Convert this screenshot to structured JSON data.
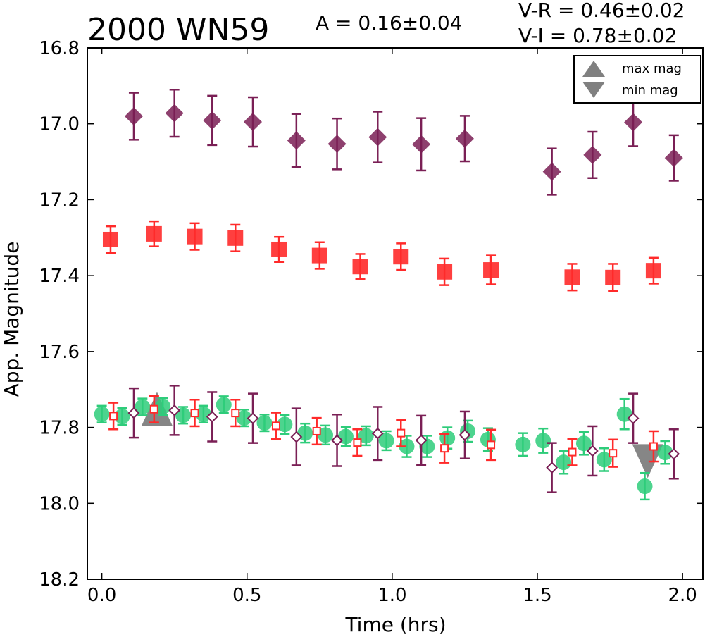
{
  "chart_data": {
    "type": "scatter",
    "title": "2000 WN59",
    "amplitude_text": "A  = 0.16±0.04",
    "color_indices": [
      "V-R = 0.46±0.02",
      "V-I  = 0.78±0.02"
    ],
    "xlabel": "Time (hrs)",
    "ylabel": "App. Magnitude",
    "xlim": [
      -0.05,
      2.07
    ],
    "ylim": [
      18.2,
      16.8
    ],
    "y_inverted": true,
    "x_ticks": [
      "0.0",
      "0.5",
      "1.0",
      "1.5",
      "2.0"
    ],
    "y_ticks": [
      "16.8",
      "17.0",
      "17.2",
      "17.4",
      "17.6",
      "17.8",
      "18.0",
      "18.2"
    ],
    "legend": {
      "position": "top-right",
      "entries": [
        {
          "label": "max mag",
          "marker": "triangle-up",
          "color": "#808080"
        },
        {
          "label": "min mag",
          "marker": "triangle-down",
          "color": "#808080"
        }
      ]
    },
    "series": [
      {
        "marker": "diamond",
        "color": "#7a1f55",
        "filled": true,
        "x": [
          0.11,
          0.25,
          0.38,
          0.52,
          0.67,
          0.81,
          0.95,
          1.1,
          1.25,
          1.55,
          1.69,
          1.83,
          1.97
        ],
        "y": [
          16.98,
          16.972,
          16.991,
          16.995,
          17.044,
          17.053,
          17.035,
          17.054,
          17.039,
          17.126,
          17.082,
          16.996,
          17.09
        ],
        "err": [
          0.062,
          0.062,
          0.065,
          0.065,
          0.07,
          0.067,
          0.067,
          0.069,
          0.06,
          0.061,
          0.061,
          0.063,
          0.06
        ]
      },
      {
        "marker": "square",
        "color": "#ff2a2a",
        "filled": true,
        "x": [
          0.03,
          0.18,
          0.32,
          0.46,
          0.61,
          0.75,
          0.89,
          1.03,
          1.18,
          1.34,
          1.62,
          1.76,
          1.9
        ],
        "y": [
          17.305,
          17.29,
          17.297,
          17.301,
          17.331,
          17.347,
          17.376,
          17.35,
          17.39,
          17.385,
          17.404,
          17.405,
          17.387
        ],
        "err": [
          0.035,
          0.033,
          0.035,
          0.035,
          0.033,
          0.035,
          0.033,
          0.035,
          0.035,
          0.038,
          0.035,
          0.036,
          0.034
        ]
      },
      {
        "marker": "circle",
        "color": "#2ecc7a",
        "filled": true,
        "x": [
          0.0,
          0.07,
          0.14,
          0.21,
          0.28,
          0.35,
          0.42,
          0.49,
          0.56,
          0.63,
          0.7,
          0.77,
          0.84,
          0.91,
          0.98,
          1.05,
          1.12,
          1.19,
          1.26,
          1.33,
          1.45,
          1.52,
          1.59,
          1.66,
          1.73,
          1.8,
          1.87,
          1.94
        ],
        "y": [
          17.765,
          17.771,
          17.746,
          17.745,
          17.768,
          17.765,
          17.74,
          17.775,
          17.788,
          17.792,
          17.815,
          17.82,
          17.824,
          17.822,
          17.835,
          17.85,
          17.85,
          17.828,
          17.81,
          17.832,
          17.845,
          17.835,
          17.892,
          17.842,
          17.885,
          17.765,
          17.955,
          17.866
        ],
        "err": [
          0.022,
          0.022,
          0.022,
          0.022,
          0.022,
          0.022,
          0.022,
          0.022,
          0.022,
          0.025,
          0.025,
          0.025,
          0.025,
          0.025,
          0.025,
          0.028,
          0.028,
          0.028,
          0.028,
          0.03,
          0.03,
          0.032,
          0.03,
          0.03,
          0.03,
          0.04,
          0.035,
          0.03
        ]
      },
      {
        "marker": "square",
        "color": "#ff2a2a",
        "filled": false,
        "x": [
          0.04,
          0.18,
          0.32,
          0.46,
          0.6,
          0.74,
          0.88,
          1.03,
          1.18,
          1.34,
          1.62,
          1.76,
          1.9
        ],
        "y": [
          17.77,
          17.752,
          17.762,
          17.762,
          17.796,
          17.81,
          17.84,
          17.815,
          17.855,
          17.846,
          17.865,
          17.868,
          17.85
        ],
        "err": [
          0.035,
          0.035,
          0.035,
          0.035,
          0.035,
          0.035,
          0.035,
          0.035,
          0.038,
          0.04,
          0.035,
          0.036,
          0.04
        ]
      },
      {
        "marker": "diamond",
        "color": "#7a1f55",
        "filled": false,
        "x": [
          0.11,
          0.25,
          0.38,
          0.52,
          0.67,
          0.81,
          0.95,
          1.1,
          1.25,
          1.55,
          1.69,
          1.83,
          1.97
        ],
        "y": [
          17.762,
          17.755,
          17.772,
          17.776,
          17.825,
          17.834,
          17.816,
          17.834,
          17.82,
          17.906,
          17.862,
          17.776,
          17.87
        ],
        "err": [
          0.065,
          0.065,
          0.065,
          0.065,
          0.075,
          0.068,
          0.07,
          0.065,
          0.062,
          0.065,
          0.065,
          0.065,
          0.065
        ]
      }
    ],
    "markers_extrema": [
      {
        "label": "max mag",
        "marker": "triangle-up",
        "color": "#808080",
        "x": 0.19,
        "y": 17.755
      },
      {
        "label": "min mag",
        "marker": "triangle-down",
        "color": "#808080",
        "x": 1.88,
        "y": 17.885
      }
    ]
  }
}
